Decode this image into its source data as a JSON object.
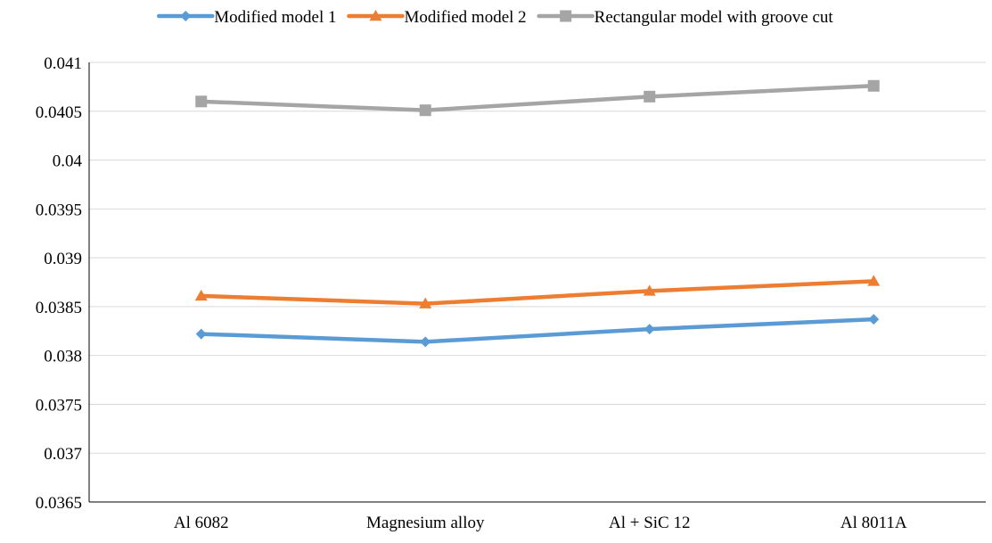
{
  "chart_data": {
    "type": "line",
    "title": "",
    "xlabel": "",
    "ylabel": "",
    "categories": [
      "Al 6082",
      "Magnesium alloy",
      "Al + SiC 12",
      "Al 8011A"
    ],
    "ylim": [
      0.0365,
      0.041
    ],
    "yticks": [
      "0.0365",
      "0.037",
      "0.0375",
      "0.038",
      "0.0385",
      "0.039",
      "0.0395",
      "0.04",
      "0.0405",
      "0.041"
    ],
    "grid": "horizontal",
    "legend_position": "top",
    "series": [
      {
        "name": "Modified model 1",
        "color": "#5B9BD5",
        "marker": "diamond",
        "values": [
          0.03822,
          0.03814,
          0.03827,
          0.03837
        ]
      },
      {
        "name": "Modified model 2",
        "color": "#ED7D31",
        "marker": "triangle",
        "values": [
          0.03861,
          0.03853,
          0.03866,
          0.03876
        ]
      },
      {
        "name": "Rectangular model with groove cut",
        "color": "#A5A5A5",
        "marker": "square",
        "values": [
          0.0406,
          0.04051,
          0.04065,
          0.04076
        ]
      }
    ]
  }
}
